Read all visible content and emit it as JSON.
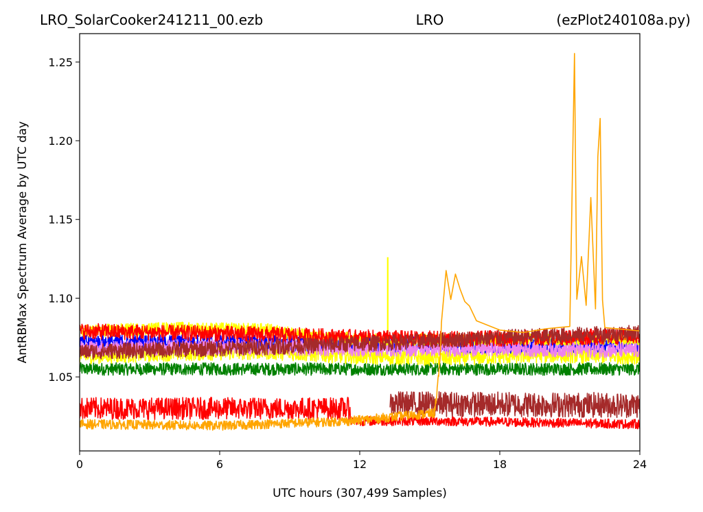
{
  "chart_data": {
    "type": "line",
    "title_left": "LRO_SolarCooker241211_00.ezb",
    "title_center": "LRO",
    "title_right": "(ezPlot240108a.py)",
    "xlabel": "UTC hours  (307,499 Samples)",
    "ylabel": "AntRBMax Spectrum Average by UTC day",
    "xlim": [
      0,
      24
    ],
    "ylim": [
      1.003,
      1.268
    ],
    "x_ticks": [
      "0",
      "6",
      "12",
      "18",
      "24"
    ],
    "x_tick_values": [
      0,
      6,
      12,
      18,
      24
    ],
    "y_ticks": [
      "1.05",
      "1.10",
      "1.15",
      "1.20",
      "1.25"
    ],
    "y_tick_values": [
      1.05,
      1.1,
      1.15,
      1.2,
      1.25
    ],
    "grid": false,
    "legend": "none",
    "series": [
      {
        "color": "#008000",
        "x": [
          0,
          24
        ],
        "y": [
          1.055,
          1.055
        ],
        "noise": 0.004
      },
      {
        "color": "#ffff00",
        "x": [
          0,
          4,
          8,
          12,
          16,
          20,
          24
        ],
        "y": [
          1.063,
          1.065,
          1.066,
          1.063,
          1.062,
          1.064,
          1.063
        ],
        "noise": 0.005,
        "spikes": [
          [
            13.2,
            1.126
          ]
        ]
      },
      {
        "color": "#0000ff",
        "x": [
          0,
          6,
          12,
          18,
          24
        ],
        "y": [
          1.072,
          1.072,
          1.071,
          1.07,
          1.071
        ],
        "noise": 0.005
      },
      {
        "color": "#ee82ee",
        "x": [
          0,
          6,
          12,
          18,
          24
        ],
        "y": [
          1.068,
          1.069,
          1.068,
          1.068,
          1.067
        ],
        "noise": 0.005
      },
      {
        "color": "#ffff00",
        "x": [
          0,
          4,
          8,
          10,
          12,
          24
        ],
        "y": [
          1.079,
          1.081,
          1.08,
          1.076,
          1.074,
          1.074
        ],
        "noise": 0.004
      },
      {
        "color": "#ff0000",
        "x": [
          0,
          4,
          8,
          12,
          16,
          20,
          24
        ],
        "y": [
          1.079,
          1.078,
          1.077,
          1.075,
          1.074,
          1.075,
          1.076
        ],
        "noise": 0.005
      },
      {
        "color": "#a52a2a",
        "x": [
          0,
          6,
          12,
          18,
          24
        ],
        "y": [
          1.066,
          1.068,
          1.071,
          1.075,
          1.078
        ],
        "noise": 0.005
      },
      {
        "color": "#ff0000",
        "x": [
          0,
          11.6
        ],
        "y": [
          1.03,
          1.03
        ],
        "noise": 0.007
      },
      {
        "color": "#a52a2a",
        "x": [
          13.3,
          24
        ],
        "y": [
          1.033,
          1.032
        ],
        "noise": 0.008
      },
      {
        "color": "#ff0000",
        "x": [
          11.6,
          15.4,
          24
        ],
        "y": [
          1.022,
          1.022,
          1.02
        ],
        "noise": 0.003
      },
      {
        "color": "#ffa500",
        "x": [
          0,
          6,
          11.6,
          15.2,
          15.45
        ],
        "y": [
          1.02,
          1.019,
          1.022,
          1.027,
          1.06
        ],
        "noise": 0.003,
        "tail_x": [
          15.5,
          15.7,
          15.9,
          16.1,
          16.3,
          16.5,
          16.7,
          17.0,
          18.0,
          19.0,
          20.0,
          21.0,
          21.2,
          21.3,
          21.5,
          21.7,
          21.9,
          22.1,
          22.2,
          22.3,
          22.4,
          22.5,
          24
        ],
        "tail_y": [
          1.085,
          1.118,
          1.1,
          1.115,
          1.105,
          1.098,
          1.095,
          1.085,
          1.08,
          1.079,
          1.08,
          1.083,
          1.256,
          1.1,
          1.126,
          1.095,
          1.164,
          1.093,
          1.19,
          1.215,
          1.098,
          1.082,
          1.08
        ]
      }
    ]
  }
}
